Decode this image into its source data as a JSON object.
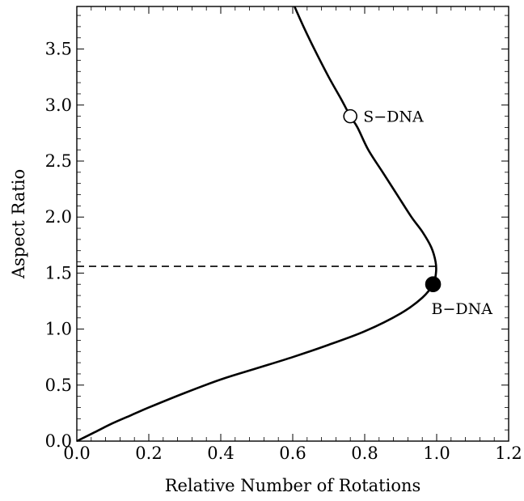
{
  "chart_data": {
    "type": "line",
    "title": "",
    "xlabel": "Relative Number of Rotations",
    "ylabel": "Aspect Ratio",
    "xlim": [
      0.0,
      1.2
    ],
    "ylim": [
      0.0,
      3.88
    ],
    "grid": false,
    "x_ticks": [
      {
        "value": 0.0,
        "label": "0.0"
      },
      {
        "value": 0.2,
        "label": "0.2"
      },
      {
        "value": 0.4,
        "label": "0.4"
      },
      {
        "value": 0.6,
        "label": "0.6"
      },
      {
        "value": 0.8,
        "label": "0.8"
      },
      {
        "value": 1.0,
        "label": "1.0"
      },
      {
        "value": 1.2,
        "label": "1.2"
      }
    ],
    "y_ticks": [
      {
        "value": 0.0,
        "label": "0.0"
      },
      {
        "value": 0.5,
        "label": "0.5"
      },
      {
        "value": 1.0,
        "label": "1.0"
      },
      {
        "value": 1.5,
        "label": "1.5"
      },
      {
        "value": 2.0,
        "label": "2.0"
      },
      {
        "value": 2.5,
        "label": "2.5"
      },
      {
        "value": 3.0,
        "label": "3.0"
      },
      {
        "value": 3.5,
        "label": "3.5"
      }
    ],
    "series": [
      {
        "points": [
          [
            0.0,
            0.0
          ],
          [
            0.05,
            0.08
          ],
          [
            0.1,
            0.16
          ],
          [
            0.15,
            0.23
          ],
          [
            0.2,
            0.3
          ],
          [
            0.3,
            0.43
          ],
          [
            0.4,
            0.55
          ],
          [
            0.5,
            0.65
          ],
          [
            0.6,
            0.75
          ],
          [
            0.7,
            0.86
          ],
          [
            0.8,
            0.98
          ],
          [
            0.9,
            1.14
          ],
          [
            0.96,
            1.28
          ],
          [
            0.99,
            1.4
          ],
          [
            0.998,
            1.5
          ],
          [
            0.997,
            1.6
          ],
          [
            0.985,
            1.73
          ],
          [
            0.96,
            1.87
          ],
          [
            0.93,
            2.0
          ],
          [
            0.89,
            2.2
          ],
          [
            0.85,
            2.4
          ],
          [
            0.81,
            2.6
          ],
          [
            0.78,
            2.8
          ],
          [
            0.76,
            2.9
          ],
          [
            0.735,
            3.05
          ],
          [
            0.7,
            3.25
          ],
          [
            0.66,
            3.5
          ],
          [
            0.63,
            3.7
          ],
          [
            0.605,
            3.88
          ]
        ]
      }
    ],
    "reference_line": {
      "style": "dashed",
      "y": 1.56,
      "x_from": 0.0,
      "x_to": 1.0
    },
    "annotations": [
      {
        "label": "S−DNA",
        "x": 0.76,
        "y": 2.9,
        "marker": "open-circle"
      },
      {
        "label": "B−DNA",
        "x": 0.99,
        "y": 1.4,
        "marker": "filled-circle"
      }
    ]
  }
}
